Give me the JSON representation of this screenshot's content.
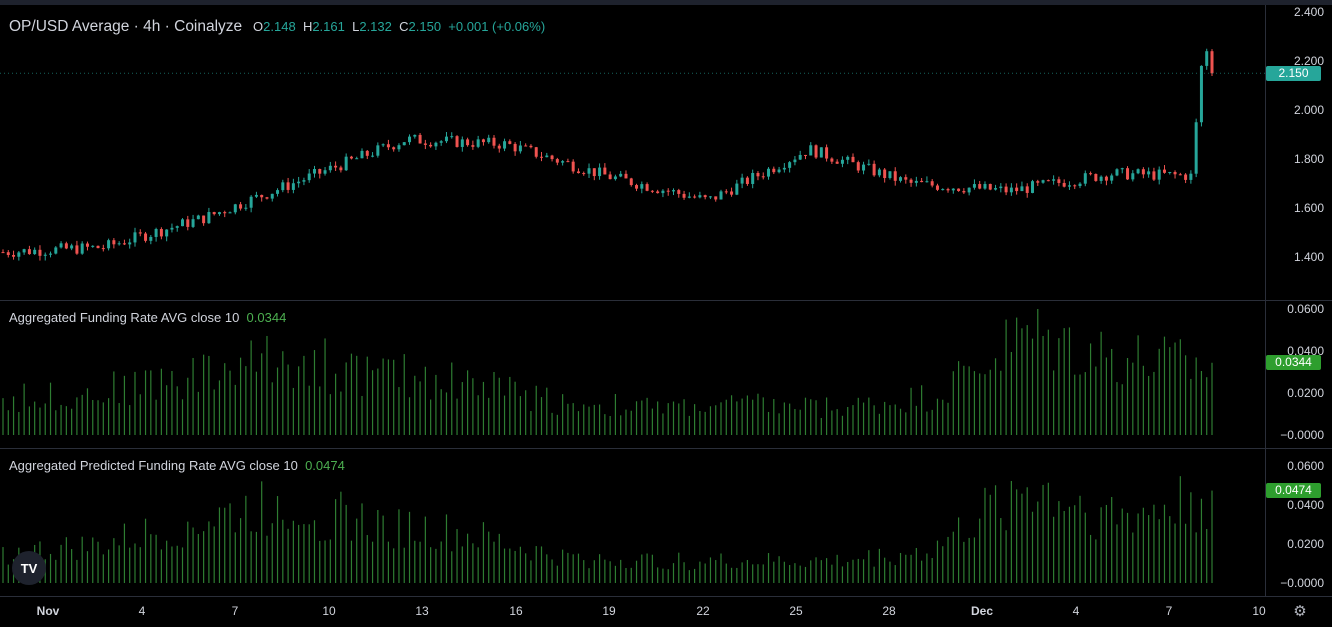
{
  "legend": {
    "symbol": "OP/USD Average · 4h · Coinalyze",
    "o_label": "O",
    "o_value": "2.148",
    "h_label": "H",
    "h_value": "2.161",
    "l_label": "L",
    "l_value": "2.132",
    "c_label": "C",
    "c_value": "2.150",
    "change": "+0.001 (+0.06%)"
  },
  "funding": {
    "title": "Aggregated Funding Rate AVG close 10",
    "value": "0.0344",
    "badge": "0.0344",
    "ticks": [
      "0.0600",
      "0.0400",
      "0.0200",
      "−0.0000"
    ]
  },
  "predicted": {
    "title": "Aggregated Predicted Funding Rate AVG close 10",
    "value": "0.0474",
    "badge": "0.0474",
    "ticks": [
      "0.0600",
      "0.0400",
      "0.0200",
      "−0.0000"
    ]
  },
  "price_axis": {
    "ticks": [
      "2.400",
      "2.200",
      "2.000",
      "1.800",
      "1.600",
      "1.400"
    ],
    "last_price": "2.150"
  },
  "time_axis": [
    "Nov",
    "4",
    "7",
    "10",
    "13",
    "16",
    "19",
    "22",
    "25",
    "28",
    "Dec",
    "4",
    "7",
    "10"
  ],
  "colors": {
    "up": "#26a69a",
    "down": "#ef5350",
    "histogram": "#2e7d32",
    "badge_green": "#2e9e2e",
    "badge_teal": "#26a69a"
  },
  "icons": {
    "logo": "tradingview-logo",
    "settings": "settings-gear-icon"
  },
  "chart_data": [
    {
      "type": "candlestick",
      "title": "OP/USD Average · 4h · Coinalyze",
      "ylim": [
        1.3,
        2.4
      ],
      "x": [
        "Nov 1",
        "Nov 4",
        "Nov 7",
        "Nov 10",
        "Nov 13",
        "Nov 16",
        "Nov 19",
        "Nov 22",
        "Nov 25",
        "Nov 28",
        "Dec 1",
        "Dec 4",
        "Dec 7",
        "Dec 8"
      ],
      "close": [
        1.42,
        1.44,
        1.56,
        1.72,
        1.88,
        1.86,
        1.73,
        1.63,
        1.84,
        1.7,
        1.67,
        1.74,
        1.73,
        2.15
      ],
      "last": {
        "open": 2.148,
        "high": 2.161,
        "low": 2.132,
        "close": 2.15
      }
    },
    {
      "type": "bar",
      "title": "Aggregated Funding Rate AVG close 10",
      "ylim": [
        0,
        0.06
      ],
      "x": [
        "Nov 1",
        "Nov 4",
        "Nov 7",
        "Nov 10",
        "Nov 13",
        "Nov 16",
        "Nov 19",
        "Nov 22",
        "Nov 25",
        "Nov 28",
        "Dec 1",
        "Dec 4",
        "Dec 7",
        "Dec 8"
      ],
      "values": [
        0.018,
        0.022,
        0.03,
        0.04,
        0.031,
        0.028,
        0.017,
        0.014,
        0.016,
        0.014,
        0.02,
        0.052,
        0.04,
        0.0344
      ]
    },
    {
      "type": "bar",
      "title": "Aggregated Predicted Funding Rate AVG close 10",
      "ylim": [
        0,
        0.06
      ],
      "x": [
        "Nov 1",
        "Nov 4",
        "Nov 7",
        "Nov 10",
        "Nov 13",
        "Nov 16",
        "Nov 19",
        "Nov 22",
        "Nov 25",
        "Nov 28",
        "Dec 1",
        "Dec 4",
        "Dec 7",
        "Dec 8"
      ],
      "values": [
        0.016,
        0.02,
        0.032,
        0.044,
        0.032,
        0.026,
        0.014,
        0.012,
        0.012,
        0.012,
        0.018,
        0.054,
        0.036,
        0.0474
      ]
    }
  ]
}
